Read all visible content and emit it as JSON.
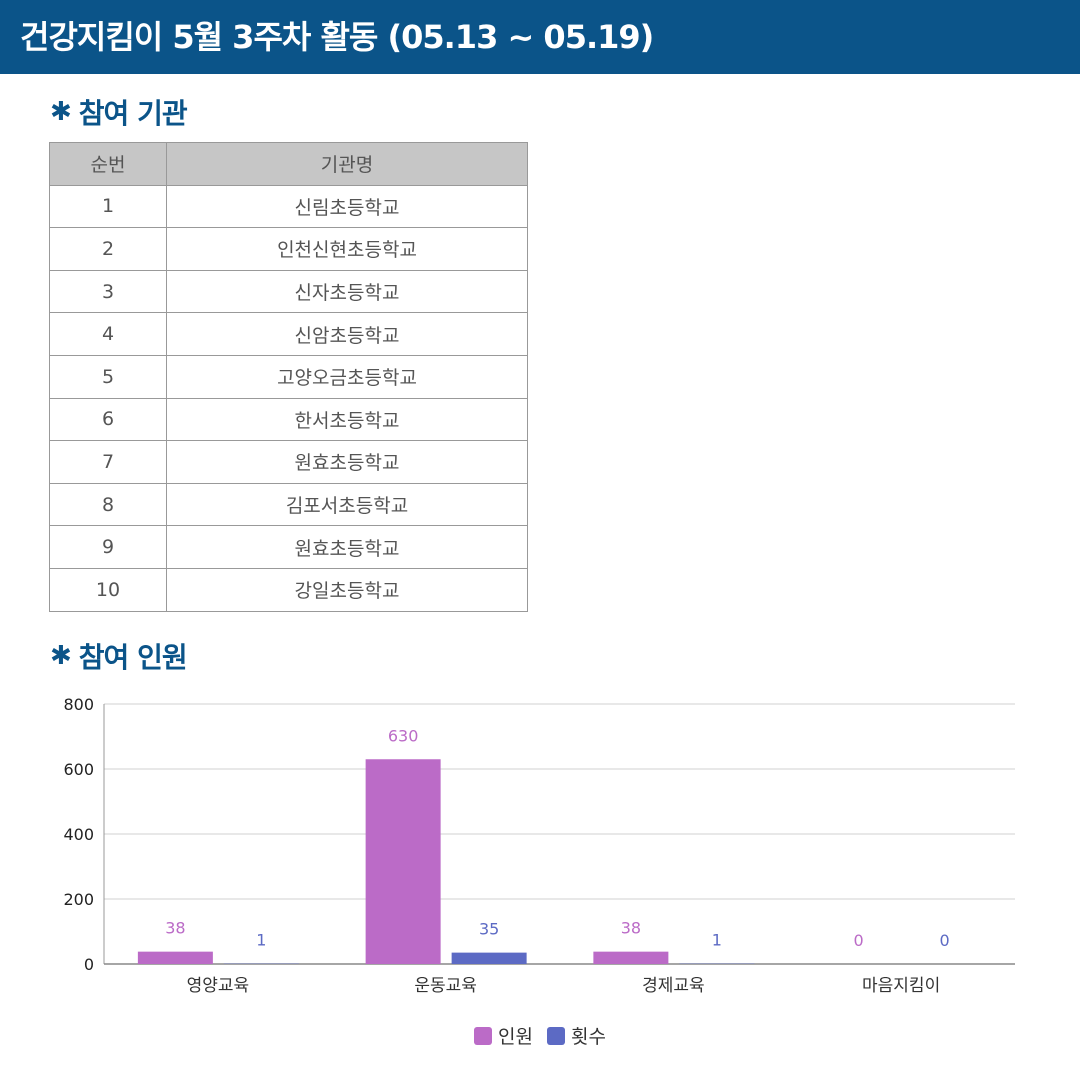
{
  "header": {
    "title": "건강지킴이 5월 3주차 활동 (05.13 ~ 05.19)"
  },
  "sections": {
    "orgs_title": "참여 기관",
    "people_title": "참여 인원",
    "bullet": "✱"
  },
  "org_table": {
    "headers": [
      "순번",
      "기관명"
    ],
    "rows": [
      [
        "1",
        "신림초등학교"
      ],
      [
        "2",
        "인천신현초등학교"
      ],
      [
        "3",
        "신자초등학교"
      ],
      [
        "4",
        "신암초등학교"
      ],
      [
        "5",
        "고양오금초등학교"
      ],
      [
        "6",
        "한서초등학교"
      ],
      [
        "7",
        "원효초등학교"
      ],
      [
        "8",
        "김포서초등학교"
      ],
      [
        "9",
        "원효초등학교"
      ],
      [
        "10",
        "강일초등학교"
      ]
    ]
  },
  "colors": {
    "header_bg": "#0b5489",
    "series_people": "#bb6bc7",
    "series_count": "#5c6ac4"
  },
  "chart_data": {
    "type": "bar",
    "categories": [
      "영양교육",
      "운동교육",
      "경제교육",
      "마음지킴이"
    ],
    "series": [
      {
        "name": "인원",
        "values": [
          38,
          630,
          38,
          0
        ],
        "color": "#bb6bc7"
      },
      {
        "name": "횟수",
        "values": [
          1,
          35,
          1,
          0
        ],
        "color": "#5c6ac4"
      }
    ],
    "ylim": [
      0,
      800
    ],
    "yticks": [
      0,
      200,
      400,
      600,
      800
    ],
    "grid": true,
    "legend": "bottom-center"
  }
}
